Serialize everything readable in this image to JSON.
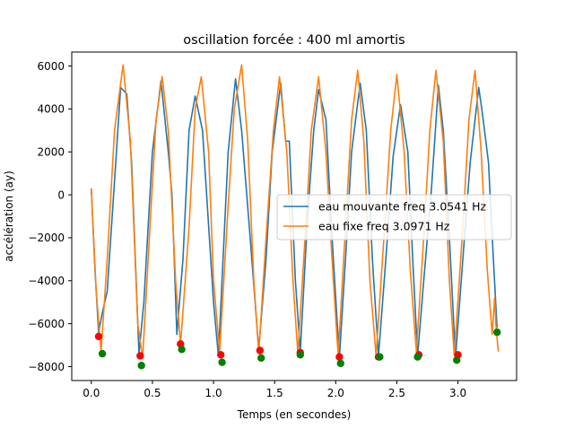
{
  "chart_data": {
    "type": "line",
    "title": "oscillation forcée : 400 ml amortis",
    "xlabel": "Temps (en secondes)",
    "ylabel": "accélération  (ay)",
    "xlim": [
      -0.16,
      3.48
    ],
    "ylim": [
      -8650,
      6650
    ],
    "xticks": [
      0.0,
      0.5,
      1.0,
      1.5,
      2.0,
      2.5,
      3.0
    ],
    "xtick_labels": [
      "0.0",
      "0.5",
      "1.0",
      "1.5",
      "2.0",
      "2.5",
      "3.0"
    ],
    "yticks": [
      -8000,
      -6000,
      -4000,
      -2000,
      0,
      2000,
      4000,
      6000
    ],
    "ytick_labels": [
      "−8000",
      "−6000",
      "−4000",
      "−2000",
      "0",
      "2000",
      "4000",
      "6000"
    ],
    "grid": false,
    "legend_position": "center-right",
    "series": [
      {
        "name": "eau mouvante freq 3.0541 Hz",
        "color": "#1f77b4",
        "points": [
          [
            0.0,
            300
          ],
          [
            0.03,
            -3500
          ],
          [
            0.06,
            -6400
          ],
          [
            0.09,
            -5500
          ],
          [
            0.13,
            -4500
          ],
          [
            0.2,
            1500
          ],
          [
            0.24,
            5000
          ],
          [
            0.29,
            4700
          ],
          [
            0.33,
            1500
          ],
          [
            0.39,
            -7400
          ],
          [
            0.43,
            -5000
          ],
          [
            0.5,
            2000
          ],
          [
            0.57,
            5300
          ],
          [
            0.63,
            2000
          ],
          [
            0.66,
            0
          ],
          [
            0.7,
            -6500
          ],
          [
            0.75,
            -3000
          ],
          [
            0.8,
            3000
          ],
          [
            0.85,
            4600
          ],
          [
            0.91,
            3000
          ],
          [
            1.0,
            -5000
          ],
          [
            1.04,
            -7500
          ],
          [
            1.12,
            2000
          ],
          [
            1.18,
            5400
          ],
          [
            1.23,
            3000
          ],
          [
            1.3,
            -2000
          ],
          [
            1.37,
            -7200
          ],
          [
            1.43,
            -3000
          ],
          [
            1.48,
            2000
          ],
          [
            1.55,
            5200
          ],
          [
            1.59,
            2500
          ],
          [
            1.62,
            2500
          ],
          [
            1.67,
            -4000
          ],
          [
            1.71,
            -7300
          ],
          [
            1.77,
            -1000
          ],
          [
            1.82,
            3000
          ],
          [
            1.86,
            4900
          ],
          [
            1.92,
            3500
          ],
          [
            1.97,
            -2000
          ],
          [
            2.03,
            -7600
          ],
          [
            2.08,
            -3000
          ],
          [
            2.13,
            2000
          ],
          [
            2.2,
            5200
          ],
          [
            2.25,
            3000
          ],
          [
            2.3,
            -3000
          ],
          [
            2.35,
            -7500
          ],
          [
            2.41,
            -3000
          ],
          [
            2.47,
            1800
          ],
          [
            2.53,
            4200
          ],
          [
            2.59,
            2000
          ],
          [
            2.63,
            -3000
          ],
          [
            2.67,
            -7500
          ],
          [
            2.72,
            -4000
          ],
          [
            2.78,
            0
          ],
          [
            2.84,
            5100
          ],
          [
            2.88,
            3000
          ],
          [
            2.93,
            -2000
          ],
          [
            2.98,
            -7600
          ],
          [
            3.04,
            -3000
          ],
          [
            3.1,
            1500
          ],
          [
            3.17,
            5000
          ],
          [
            3.2,
            3800
          ],
          [
            3.25,
            1500
          ],
          [
            3.29,
            -3000
          ],
          [
            3.32,
            -6200
          ]
        ]
      },
      {
        "name": "eau fixe freq 3.0971 Hz",
        "color": "#ff7f0e",
        "points": [
          [
            0.0,
            300
          ],
          [
            0.04,
            -4500
          ],
          [
            0.08,
            -7300
          ],
          [
            0.13,
            -3000
          ],
          [
            0.19,
            3000
          ],
          [
            0.26,
            6050
          ],
          [
            0.32,
            2500
          ],
          [
            0.38,
            -6000
          ],
          [
            0.42,
            -7600
          ],
          [
            0.48,
            -1500
          ],
          [
            0.53,
            3500
          ],
          [
            0.58,
            5500
          ],
          [
            0.63,
            3000
          ],
          [
            0.69,
            -4000
          ],
          [
            0.73,
            -7000
          ],
          [
            0.8,
            -1500
          ],
          [
            0.85,
            4000
          ],
          [
            0.9,
            5500
          ],
          [
            0.96,
            2000
          ],
          [
            1.0,
            -4000
          ],
          [
            1.05,
            -7300
          ],
          [
            1.12,
            -500
          ],
          [
            1.17,
            4000
          ],
          [
            1.23,
            6050
          ],
          [
            1.28,
            2500
          ],
          [
            1.33,
            -4000
          ],
          [
            1.37,
            -7400
          ],
          [
            1.43,
            -2000
          ],
          [
            1.49,
            3000
          ],
          [
            1.54,
            5500
          ],
          [
            1.6,
            2000
          ],
          [
            1.65,
            -4000
          ],
          [
            1.69,
            -7400
          ],
          [
            1.76,
            -1000
          ],
          [
            1.8,
            3000
          ],
          [
            1.86,
            5500
          ],
          [
            1.92,
            2000
          ],
          [
            1.97,
            -3000
          ],
          [
            2.02,
            -7500
          ],
          [
            2.08,
            -1500
          ],
          [
            2.13,
            3500
          ],
          [
            2.18,
            5800
          ],
          [
            2.23,
            2500
          ],
          [
            2.28,
            -4000
          ],
          [
            2.33,
            -7500
          ],
          [
            2.4,
            -1500
          ],
          [
            2.45,
            3000
          ],
          [
            2.5,
            5600
          ],
          [
            2.56,
            2000
          ],
          [
            2.61,
            -3500
          ],
          [
            2.66,
            -7300
          ],
          [
            2.72,
            -2000
          ],
          [
            2.77,
            3000
          ],
          [
            2.82,
            5800
          ],
          [
            2.88,
            2500
          ],
          [
            2.93,
            -4000
          ],
          [
            2.97,
            -7500
          ],
          [
            3.04,
            -1500
          ],
          [
            3.09,
            3500
          ],
          [
            3.14,
            5800
          ],
          [
            3.19,
            2000
          ],
          [
            3.24,
            -3500
          ],
          [
            3.28,
            -6500
          ],
          [
            3.3,
            -4800
          ],
          [
            3.31,
            -6000
          ],
          [
            3.33,
            -7300
          ]
        ]
      },
      {
        "type": "scatter",
        "color": "#ff0000",
        "points": [
          [
            0.06,
            -6600
          ],
          [
            0.4,
            -7500
          ],
          [
            0.73,
            -6950
          ],
          [
            1.06,
            -7450
          ],
          [
            1.38,
            -7250
          ],
          [
            1.71,
            -7350
          ],
          [
            2.03,
            -7550
          ],
          [
            2.35,
            -7550
          ],
          [
            2.68,
            -7450
          ],
          [
            3.0,
            -7450
          ]
        ]
      },
      {
        "type": "scatter",
        "color": "#008000",
        "points": [
          [
            0.09,
            -7400
          ],
          [
            0.41,
            -7950
          ],
          [
            0.74,
            -7200
          ],
          [
            1.07,
            -7800
          ],
          [
            1.39,
            -7600
          ],
          [
            1.71,
            -7450
          ],
          [
            2.04,
            -7850
          ],
          [
            2.36,
            -7550
          ],
          [
            2.67,
            -7550
          ],
          [
            2.99,
            -7700
          ],
          [
            3.32,
            -6400
          ]
        ]
      }
    ]
  }
}
